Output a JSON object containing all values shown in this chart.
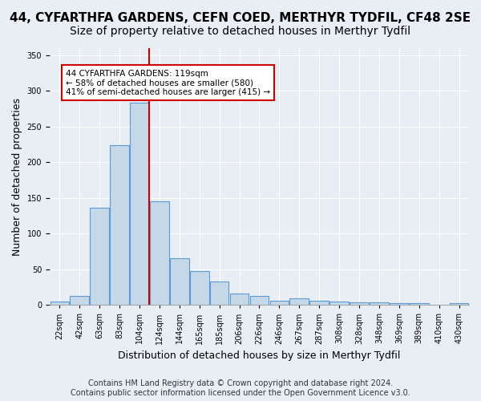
{
  "title": "44, CYFARTHFA GARDENS, CEFN COED, MERTHYR TYDFIL, CF48 2SE",
  "subtitle": "Size of property relative to detached houses in Merthyr Tydfil",
  "xlabel": "Distribution of detached houses by size in Merthyr Tydfil",
  "ylabel": "Number of detached properties",
  "bin_labels": [
    "22sqm",
    "42sqm",
    "63sqm",
    "83sqm",
    "104sqm",
    "124sqm",
    "144sqm",
    "165sqm",
    "185sqm",
    "206sqm",
    "226sqm",
    "246sqm",
    "267sqm",
    "287sqm",
    "308sqm",
    "328sqm",
    "348sqm",
    "369sqm",
    "389sqm",
    "410sqm",
    "430sqm"
  ],
  "bar_heights": [
    5,
    13,
    136,
    224,
    284,
    145,
    65,
    47,
    33,
    16,
    13,
    6,
    9,
    6,
    5,
    4,
    4,
    3,
    2,
    0,
    2
  ],
  "bar_color": "#c5d8e8",
  "bar_edge_color": "#5b9bd5",
  "vline_x": 4.5,
  "vline_color": "#cc0000",
  "annotation_text": "44 CYFARTHFA GARDENS: 119sqm\n← 58% of detached houses are smaller (580)\n41% of semi-detached houses are larger (415) →",
  "annotation_box_color": "#ffffff",
  "annotation_box_edge": "#cc0000",
  "ylim": [
    0,
    360
  ],
  "yticks": [
    0,
    50,
    100,
    150,
    200,
    250,
    300,
    350
  ],
  "background_color": "#e8eef4",
  "plot_bg_color": "#e8eef4",
  "footer": "Contains HM Land Registry data © Crown copyright and database right 2024.\nContains public sector information licensed under the Open Government Licence v3.0.",
  "title_fontsize": 11,
  "subtitle_fontsize": 10,
  "xlabel_fontsize": 9,
  "ylabel_fontsize": 9,
  "tick_fontsize": 7,
  "footer_fontsize": 7
}
